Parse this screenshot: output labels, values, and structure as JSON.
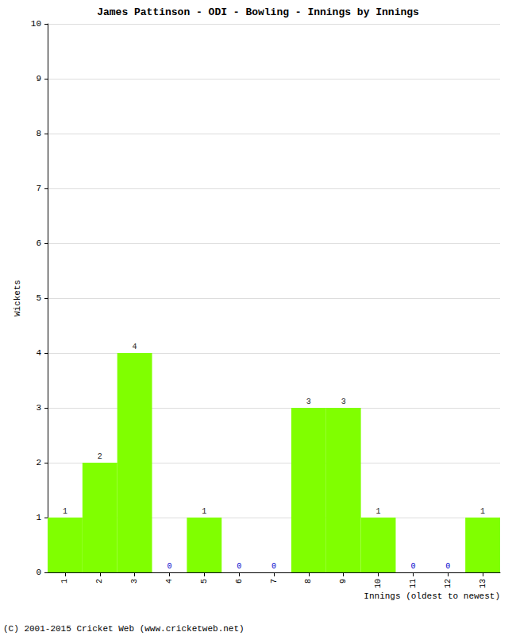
{
  "chart_data": {
    "type": "bar",
    "title": "James Pattinson - ODI - Bowling - Innings by Innings",
    "x_label": "Innings (oldest to newest)",
    "y_label": "Wickets",
    "annotations": [
      "(C) 2001-2015 Cricket Web (www.cricketweb.net)"
    ],
    "categories": [
      "1",
      "2",
      "3",
      "4",
      "5",
      "6",
      "7",
      "8",
      "9",
      "10",
      "11",
      "12",
      "13"
    ],
    "values": [
      1,
      2,
      4,
      0,
      1,
      0,
      0,
      3,
      3,
      1,
      0,
      0,
      1
    ],
    "color": "#80ff00",
    "ylim": [
      0,
      10
    ],
    "yticks": [
      0,
      1,
      2,
      3,
      4,
      5,
      6,
      7,
      8,
      9,
      10
    ],
    "grid": true,
    "data_labels": true
  }
}
